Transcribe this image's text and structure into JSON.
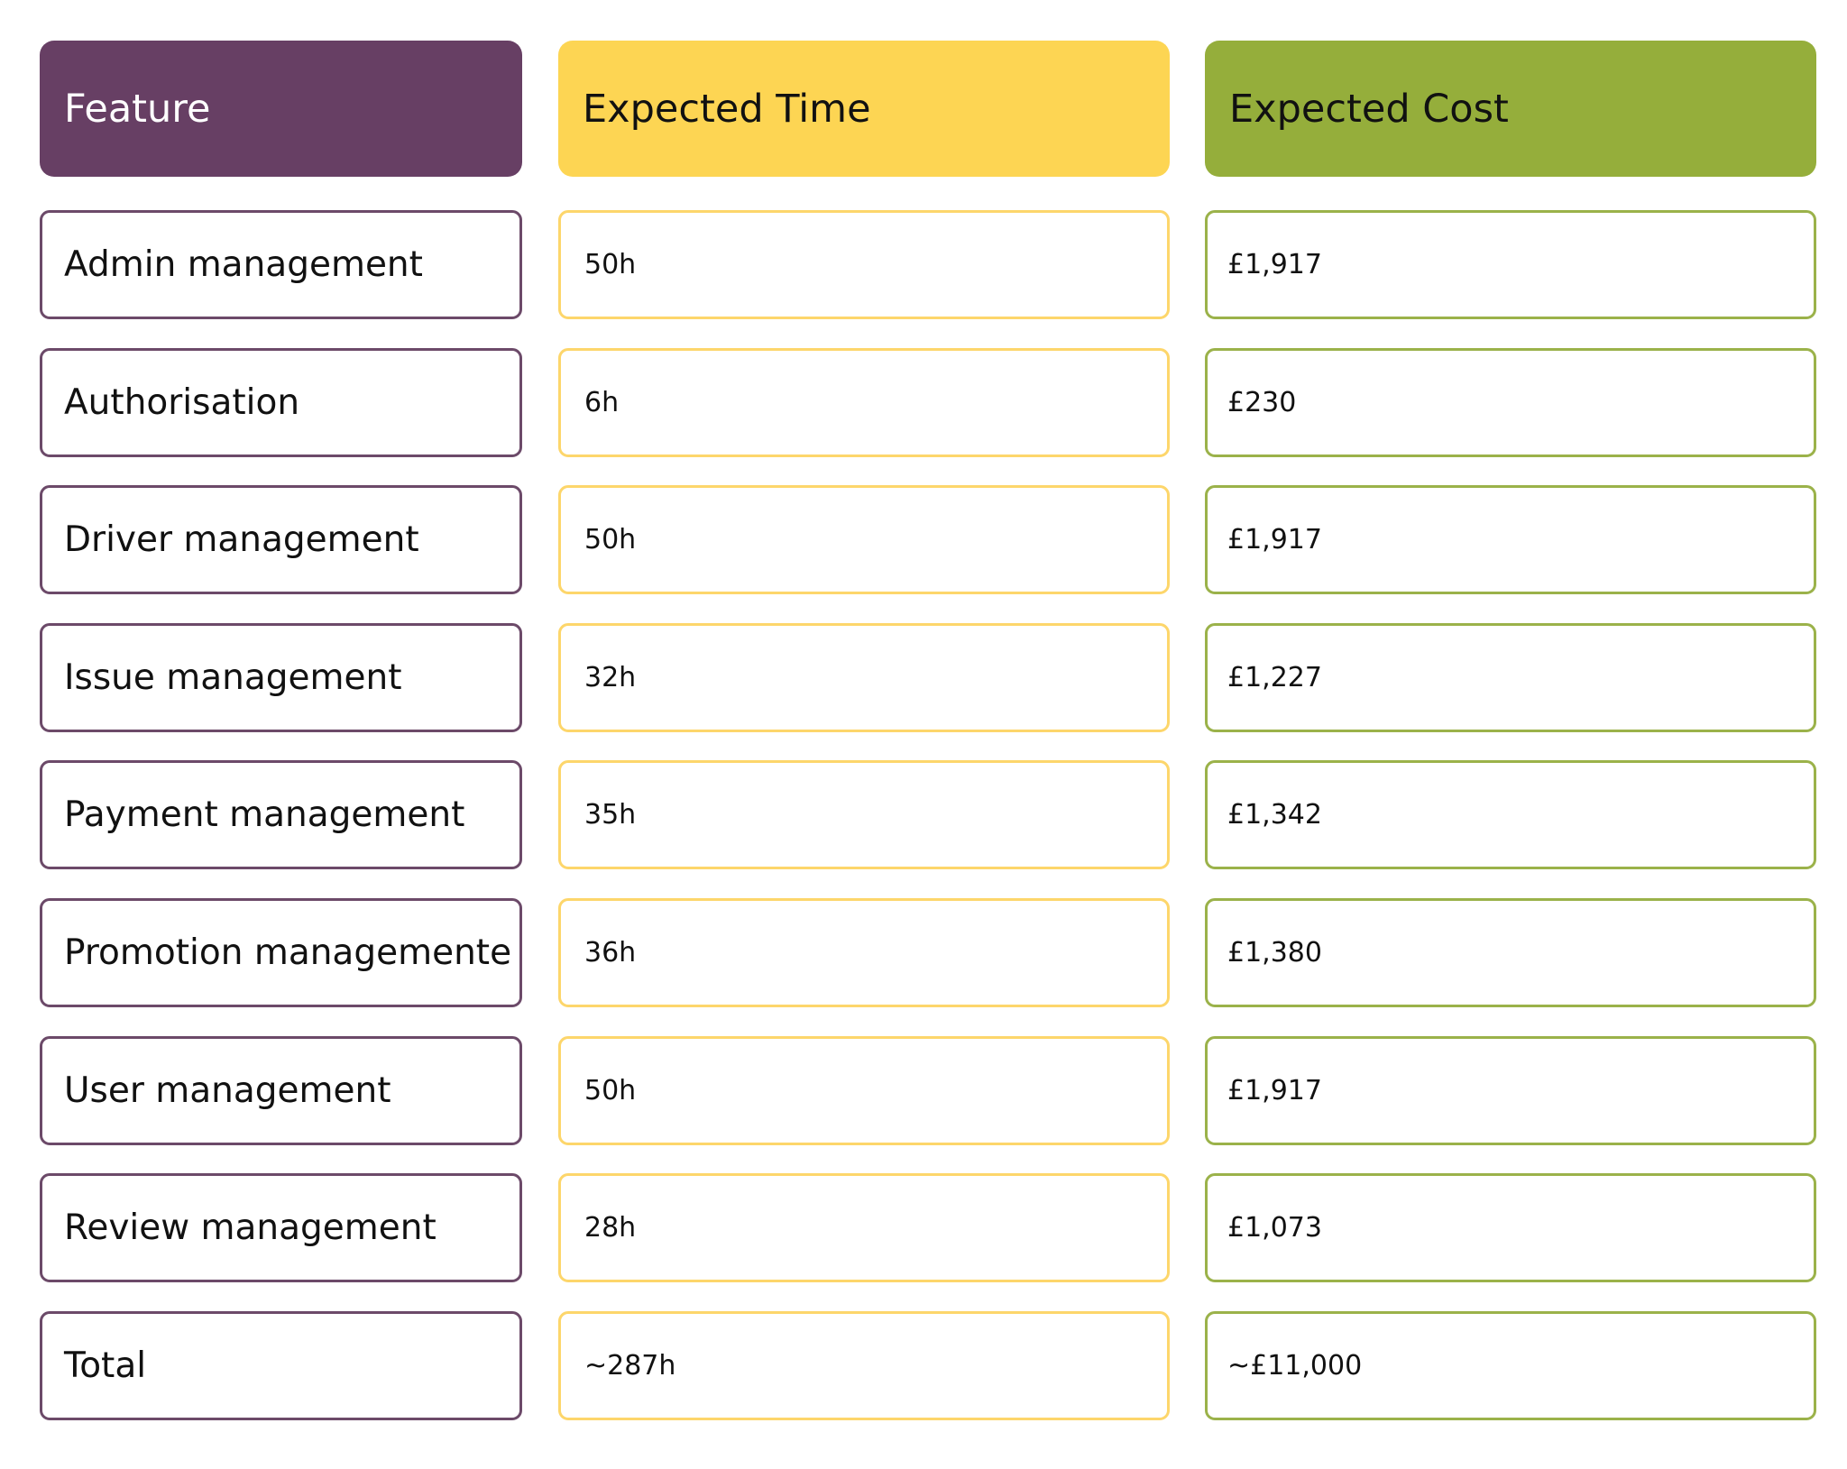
{
  "chart_data": {
    "type": "table",
    "columns": [
      "Feature",
      "Expected Time",
      "Expected Cost"
    ],
    "rows": [
      {
        "feature": "Admin management",
        "time": "50h",
        "cost": "£1,917"
      },
      {
        "feature": "Authorisation",
        "time": "6h",
        "cost": "£230"
      },
      {
        "feature": "Driver management",
        "time": "50h",
        "cost": "£1,917"
      },
      {
        "feature": "Issue management",
        "time": "32h",
        "cost": "£1,227"
      },
      {
        "feature": "Payment management",
        "time": "35h",
        "cost": "£1,342"
      },
      {
        "feature": "Promotion managemente",
        "time": "36h",
        "cost": "£1,380"
      },
      {
        "feature": "User management",
        "time": "50h",
        "cost": "£1,917"
      },
      {
        "feature": "Review management",
        "time": "28h",
        "cost": "£1,073"
      },
      {
        "feature": "Total",
        "time": "~287h",
        "cost": "~£11,000"
      }
    ]
  },
  "colors": {
    "feature_header": "#673f64",
    "time_header": "#fdd553",
    "cost_header": "#95ae3b",
    "feature_border": "#6c4a69",
    "time_border": "#fdd66b",
    "cost_border": "#9bb24a"
  }
}
